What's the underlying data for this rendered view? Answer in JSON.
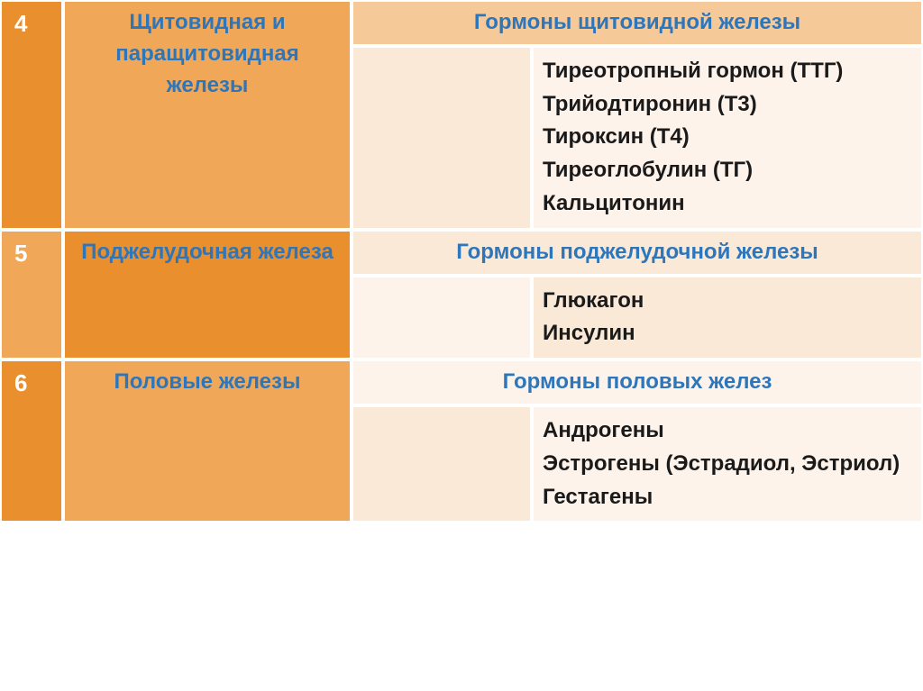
{
  "colors": {
    "orange_dark": "#e98f2d",
    "orange_light": "#f0a858",
    "peach_header": "#f6c999",
    "peach_body_a": "#fbe9d7",
    "peach_body_b": "#fdf3eb",
    "blue_text": "#2d76bb",
    "white": "#ffffff",
    "black_text": "#1a1a1a"
  },
  "rows": [
    {
      "num": "4",
      "gland": "Щитовидная и паращитовидная железы",
      "header": "Гормоны щитовидной железы",
      "items": [
        "Тиреотропный гормон (ТТГ)",
        "Трийодтиронин (Т3)",
        "Тироксин (Т4)",
        "Тиреоглобулин (ТГ)",
        "Кальцитонин"
      ],
      "num_bg": "orange_dark",
      "gland_bg": "orange_light",
      "header_bg": "peach_header",
      "spacer_bg": "peach_body_a",
      "body_bg": "peach_body_b"
    },
    {
      "num": "5",
      "gland": "Поджелудочная железа",
      "header": "Гормоны поджелудочной железы",
      "items": [
        "Глюкагон",
        "Инсулин"
      ],
      "num_bg": "orange_light",
      "gland_bg": "orange_dark",
      "header_bg": "peach_body_a",
      "spacer_bg": "peach_body_b",
      "body_bg": "peach_body_a"
    },
    {
      "num": "6",
      "gland": "Половые железы",
      "header": "Гормоны половых желез",
      "items": [
        "Андрогены",
        "Эстрогены (Эстрадиол, Эстриол)",
        "Гестагены"
      ],
      "num_bg": "orange_dark",
      "gland_bg": "orange_light",
      "header_bg": "peach_body_b",
      "spacer_bg": "peach_body_a",
      "body_bg": "peach_body_b"
    }
  ]
}
